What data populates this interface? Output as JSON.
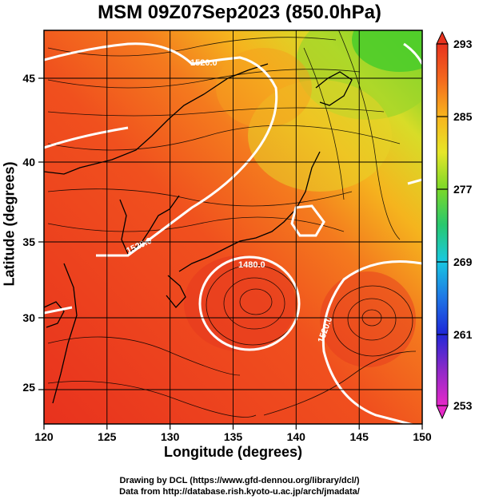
{
  "title": "MSM 09Z07Sep2023 (850.0hPa)",
  "map": {
    "xlabel": "Longitude (degrees)",
    "ylabel": "Latitude  (degrees)",
    "lon_range": [
      120,
      150
    ],
    "lat_range": [
      22.5,
      48
    ],
    "x_ticks": [
      "120",
      "125",
      "130",
      "135",
      "140",
      "145",
      "150"
    ],
    "y_ticks": [
      "25",
      "30",
      "35",
      "40",
      "45"
    ],
    "grid": true,
    "contour_labels": [
      "1520.0",
      "1520.0",
      "1520.0",
      "1480.0"
    ],
    "colorbar": {
      "labels": [
        "293",
        "285",
        "277",
        "269",
        "261",
        "253"
      ],
      "range": [
        253,
        293
      ]
    }
  },
  "credits": [
    "Drawing by DCL (https://www.gfd-dennou.org/library/dcl/)",
    "Data from http://database.rish.kyoto-u.ac.jp/arch/jmadata/"
  ]
}
